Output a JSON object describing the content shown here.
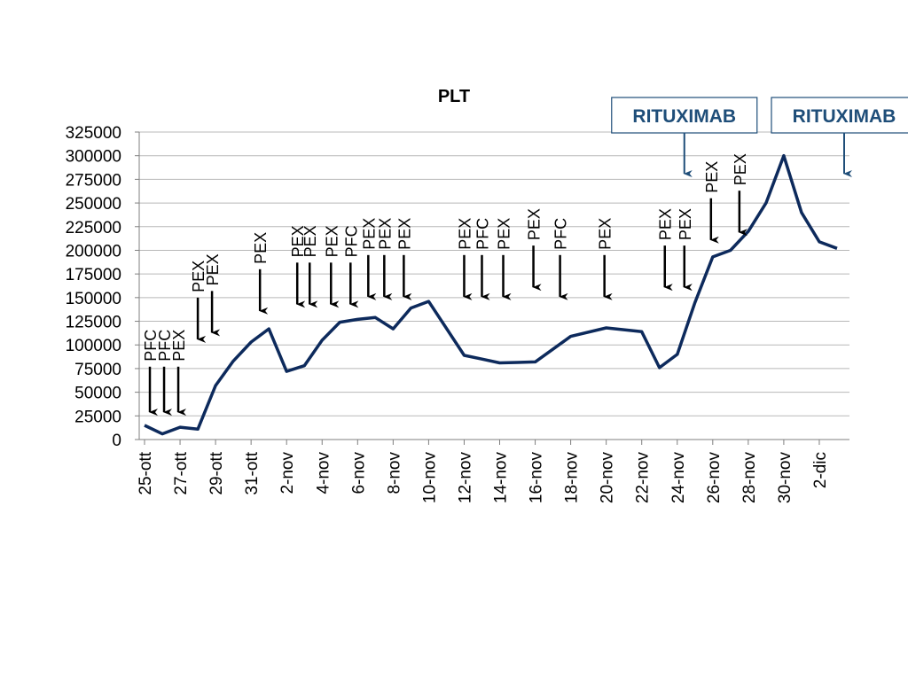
{
  "chart_data": {
    "type": "line",
    "title": "PLT",
    "xlabel": "",
    "ylabel": "",
    "ylim": [
      0,
      325000
    ],
    "ytick_step": 25000,
    "grid": true,
    "legend": "none",
    "colors": {
      "line": "#0d2a5c",
      "grid": "#b8b8b8",
      "axis": "#7f7f7f",
      "arrow": "#000000",
      "rituximab": "#1f4e79"
    },
    "x_start_index": 0,
    "x_end_index": 39,
    "x_ticks": [
      {
        "index": 0,
        "label": "25-ott"
      },
      {
        "index": 2,
        "label": "27-ott"
      },
      {
        "index": 4,
        "label": "29-ott"
      },
      {
        "index": 6,
        "label": "31-ott"
      },
      {
        "index": 8,
        "label": "2-nov"
      },
      {
        "index": 10,
        "label": "4-nov"
      },
      {
        "index": 12,
        "label": "6-nov"
      },
      {
        "index": 14,
        "label": "8-nov"
      },
      {
        "index": 16,
        "label": "10-nov"
      },
      {
        "index": 18,
        "label": "12-nov"
      },
      {
        "index": 20,
        "label": "14-nov"
      },
      {
        "index": 22,
        "label": "16-nov"
      },
      {
        "index": 24,
        "label": "18-nov"
      },
      {
        "index": 26,
        "label": "20-nov"
      },
      {
        "index": 28,
        "label": "22-nov"
      },
      {
        "index": 30,
        "label": "24-nov"
      },
      {
        "index": 32,
        "label": "26-nov"
      },
      {
        "index": 34,
        "label": "28-nov"
      },
      {
        "index": 36,
        "label": "30-nov"
      },
      {
        "index": 38,
        "label": "2-dic"
      }
    ],
    "series": [
      {
        "points": [
          [
            0,
            15000
          ],
          [
            1,
            6000
          ],
          [
            2,
            13000
          ],
          [
            3,
            11000
          ],
          [
            4,
            57000
          ],
          [
            5,
            83000
          ],
          [
            6,
            103000
          ],
          [
            7,
            117000
          ],
          [
            8,
            72000
          ],
          [
            9,
            78000
          ],
          [
            10,
            105000
          ],
          [
            11,
            124000
          ],
          [
            12,
            127000
          ],
          [
            13,
            129000
          ],
          [
            14,
            117000
          ],
          [
            15,
            139000
          ],
          [
            16,
            146000
          ],
          [
            18,
            89000
          ],
          [
            19,
            85000
          ],
          [
            20,
            81000
          ],
          [
            21,
            81500
          ],
          [
            22,
            82000
          ],
          [
            24,
            109000
          ],
          [
            26,
            118000
          ],
          [
            27,
            116000
          ],
          [
            28,
            114000
          ],
          [
            29,
            76000
          ],
          [
            30,
            90000
          ],
          [
            31,
            145000
          ],
          [
            32,
            193000
          ],
          [
            33,
            200000
          ],
          [
            34,
            220000
          ],
          [
            35,
            250000
          ],
          [
            36,
            300000
          ],
          [
            37,
            240000
          ],
          [
            38,
            209000
          ],
          [
            39,
            202000
          ]
        ]
      }
    ],
    "annotations": [
      {
        "label": "PFC",
        "index": 0.3,
        "tip": 28000,
        "tail": 77000
      },
      {
        "label": "PFC",
        "index": 1.1,
        "tip": 28000,
        "tail": 77000
      },
      {
        "label": "PEX",
        "index": 1.9,
        "tip": 28000,
        "tail": 77000
      },
      {
        "label": "PEX",
        "index": 3.0,
        "tip": 105000,
        "tail": 150000
      },
      {
        "label": "PEX",
        "index": 3.8,
        "tip": 112000,
        "tail": 157000
      },
      {
        "label": "PEX",
        "index": 6.5,
        "tip": 135000,
        "tail": 180000
      },
      {
        "label": "PEX",
        "index": 8.6,
        "tip": 142000,
        "tail": 187000
      },
      {
        "label": "PEX",
        "index": 9.3,
        "tip": 142000,
        "tail": 187000
      },
      {
        "label": "PEX",
        "index": 10.5,
        "tip": 142000,
        "tail": 187000
      },
      {
        "label": "PFC",
        "index": 11.6,
        "tip": 142000,
        "tail": 187000
      },
      {
        "label": "PEX",
        "index": 12.6,
        "tip": 150000,
        "tail": 195000
      },
      {
        "label": "PEX",
        "index": 13.5,
        "tip": 150000,
        "tail": 195000
      },
      {
        "label": "PEX",
        "index": 14.6,
        "tip": 150000,
        "tail": 195000
      },
      {
        "label": "PEX",
        "index": 18.0,
        "tip": 150000,
        "tail": 195000
      },
      {
        "label": "PFC",
        "index": 19.0,
        "tip": 150000,
        "tail": 195000
      },
      {
        "label": "PEX",
        "index": 20.2,
        "tip": 150000,
        "tail": 195000
      },
      {
        "label": "PEX",
        "index": 21.9,
        "tip": 160000,
        "tail": 205000
      },
      {
        "label": "PFC",
        "index": 23.4,
        "tip": 150000,
        "tail": 195000
      },
      {
        "label": "PEX",
        "index": 25.9,
        "tip": 150000,
        "tail": 195000
      },
      {
        "label": "PEX",
        "index": 29.3,
        "tip": 160000,
        "tail": 205000
      },
      {
        "label": "PEX",
        "index": 30.4,
        "tip": 160000,
        "tail": 205000
      },
      {
        "label": "PEX",
        "index": 31.9,
        "tip": 210000,
        "tail": 255000
      },
      {
        "label": "PEX",
        "index": 33.5,
        "tip": 218000,
        "tail": 263000
      }
    ],
    "callouts": [
      {
        "label": "RITUXIMAB",
        "index": 30.4,
        "tip": 280000
      },
      {
        "label": "RITUXIMAB",
        "index": 39.4,
        "tip": 280000
      }
    ]
  }
}
